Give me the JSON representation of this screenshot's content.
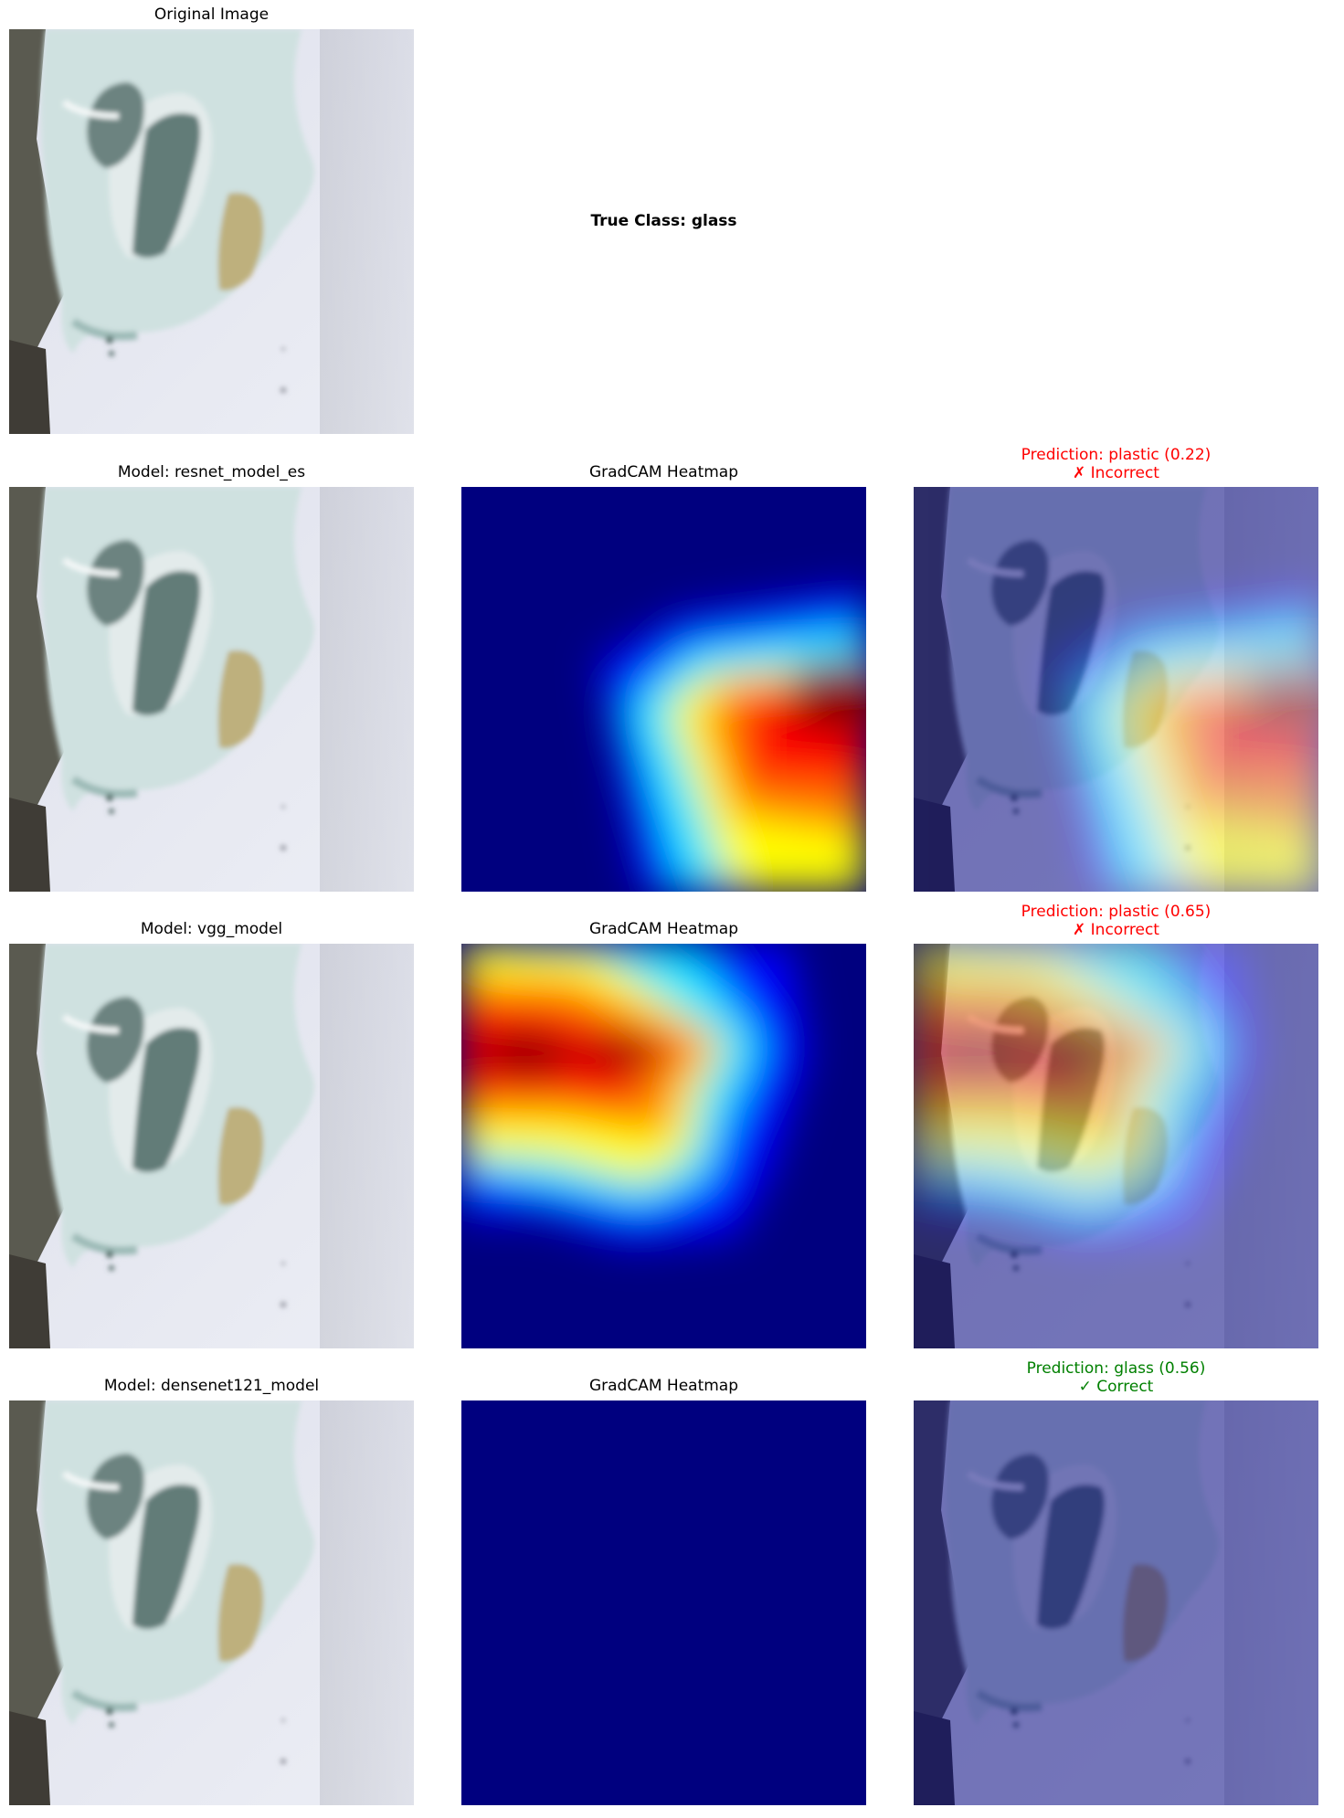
{
  "original": {
    "title": "Original Image"
  },
  "true_class": "True Class: glass",
  "rows": [
    {
      "model_title": "Model: resnet_model_es",
      "heatmap_title": "GradCAM Heatmap",
      "prediction": "Prediction: plastic (0.22)",
      "verdict": "✗ Incorrect",
      "status_color": "#ff0000"
    },
    {
      "model_title": "Model: vgg_model",
      "heatmap_title": "GradCAM Heatmap",
      "prediction": "Prediction: plastic (0.65)",
      "verdict": "✗ Incorrect",
      "status_color": "#ff0000"
    },
    {
      "model_title": "Model: densenet121_model",
      "heatmap_title": "GradCAM Heatmap",
      "prediction": "Prediction: glass (0.56)",
      "verdict": "✓ Correct",
      "status_color": "#008000"
    }
  ],
  "colors": {
    "jet_background": "#00007f",
    "photo_background": "#e3e4ee"
  }
}
